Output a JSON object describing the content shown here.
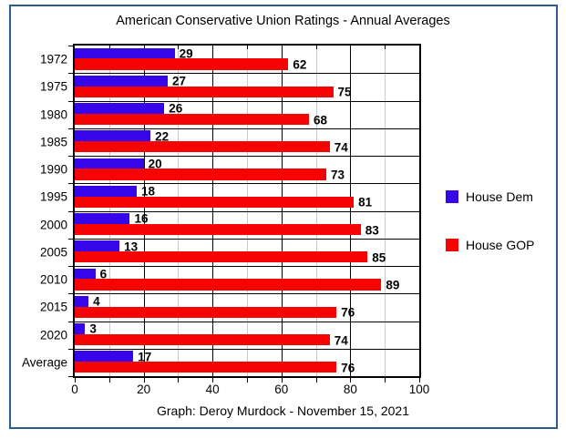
{
  "frame": {
    "border_color": "#2B5C8F"
  },
  "chart_data": {
    "type": "bar",
    "orientation": "horizontal",
    "title": "American Conservative Union Ratings - Annual Averages",
    "caption": "Graph: Deroy Murdock - November 15, 2021",
    "categories": [
      "1972",
      "1975",
      "1980",
      "1985",
      "1990",
      "1995",
      "2000",
      "2005",
      "2010",
      "2015",
      "2020",
      "Average"
    ],
    "series": [
      {
        "name": "House Dem",
        "color": "#3606E8",
        "values": [
          29,
          27,
          26,
          22,
          20,
          18,
          16,
          13,
          6,
          4,
          3,
          17
        ]
      },
      {
        "name": "House GOP",
        "color": "#F50404",
        "values": [
          62,
          75,
          68,
          74,
          73,
          81,
          83,
          85,
          89,
          76,
          74,
          76
        ]
      }
    ],
    "xlim": [
      0,
      100
    ],
    "xticks": [
      0,
      20,
      40,
      60,
      80,
      100
    ],
    "minor_tick_step": 10,
    "major_gridline_step": 20,
    "grid": true,
    "legend_position": "right",
    "data_labels": true
  }
}
